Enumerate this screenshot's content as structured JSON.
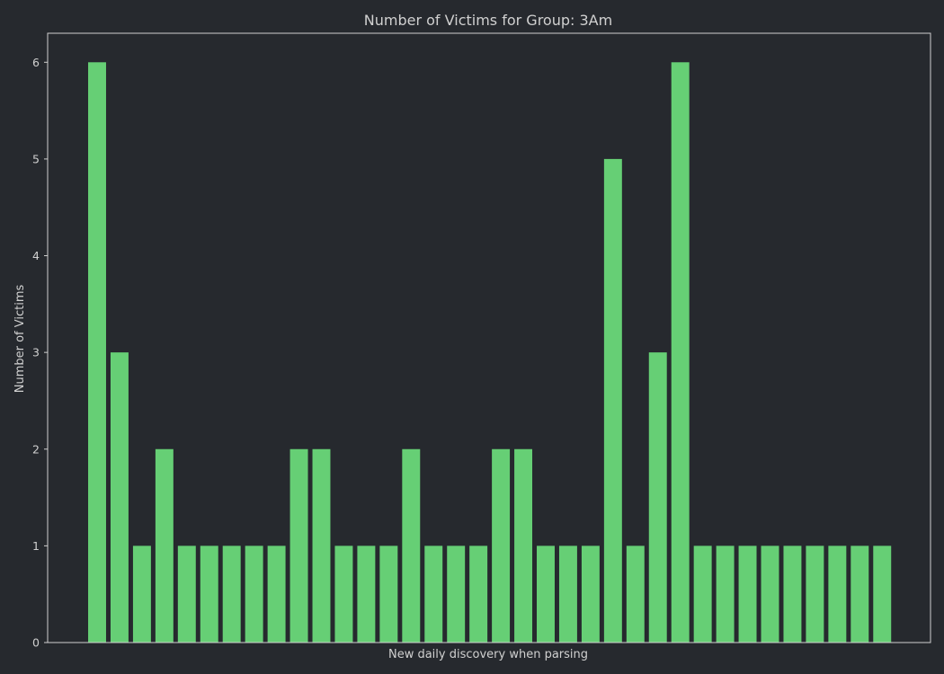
{
  "chart_data": {
    "type": "bar",
    "title": "Number of Victims for Group: 3Am",
    "xlabel": "New daily discovery when parsing",
    "ylabel": "Number of Victims",
    "ylim": [
      0,
      6.3
    ],
    "yticks": [
      0,
      1,
      2,
      3,
      4,
      5,
      6
    ],
    "x_tick_labels_shown": false,
    "grid": false,
    "bar_color": "#66cf75",
    "background_color": "#26292e",
    "axes_edge_color": "#d0d0d0",
    "text_color": "#d0d0d0",
    "values": [
      6,
      3,
      1,
      2,
      1,
      1,
      1,
      1,
      1,
      2,
      2,
      1,
      1,
      1,
      2,
      1,
      1,
      1,
      2,
      2,
      1,
      1,
      1,
      5,
      1,
      3,
      6,
      1,
      1,
      1,
      1,
      1,
      1,
      1,
      1,
      1
    ]
  }
}
